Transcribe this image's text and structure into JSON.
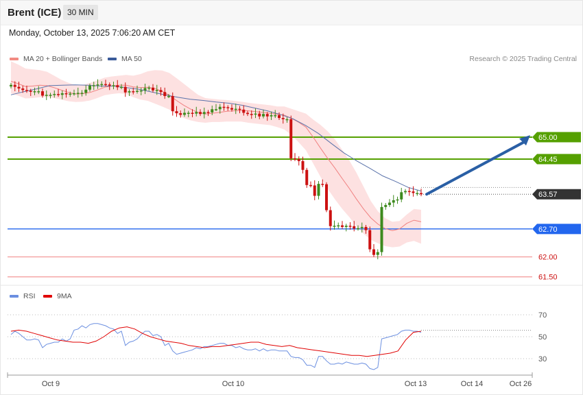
{
  "header": {
    "symbol": "Brent (ICE)",
    "timeframe": "30 MIN"
  },
  "datetime": "Monday, October 13, 2025 7:06:20 AM CET",
  "legend": {
    "ma20": {
      "label": "MA 20 + Bollinger Bands",
      "color": "#f28b82"
    },
    "ma50": {
      "label": "MA 50",
      "color": "#3a5a99"
    },
    "rsi": {
      "label": "RSI",
      "color": "#6b8fe0"
    },
    "ma9": {
      "label": "9MA",
      "color": "#e00000"
    }
  },
  "credit": "Research © 2025 Trading Central",
  "colors": {
    "bull": "#3d8a1e",
    "bear": "#cc1111",
    "band": "#fde1e1",
    "resistance": "#55a000",
    "pivot": "#2266ee",
    "support": "#f4a0a0",
    "last": "#333333",
    "arrow": "#2a5fa5"
  },
  "chart_data": [
    {
      "type": "candlestick",
      "title": "Brent (ICE) 30 MIN",
      "x_labels": [
        "Oct 9",
        "Oct 10",
        "Oct 13",
        "Oct 14",
        "Oct 26"
      ],
      "levels": [
        {
          "value": 65.0,
          "label": "65.00",
          "kind": "resistance"
        },
        {
          "value": 64.45,
          "label": "64.45",
          "kind": "resistance"
        },
        {
          "value": 63.57,
          "label": "63.57",
          "kind": "last"
        },
        {
          "value": 62.7,
          "label": "62.70",
          "kind": "pivot"
        },
        {
          "value": 62.0,
          "label": "62.00",
          "kind": "support"
        },
        {
          "value": 61.5,
          "label": "61.50",
          "kind": "support"
        }
      ],
      "series": [
        {
          "name": "Brent (ICE)",
          "close": [
            66.31,
            66.26,
            66.22,
            66.18,
            66.16,
            66.14,
            66.15,
            66.15,
            66.04,
            66.06,
            66.06,
            66.08,
            66.06,
            66.1,
            66.08,
            66.09,
            66.1,
            66.11,
            66.11,
            66.19,
            66.29,
            66.3,
            66.32,
            66.33,
            66.32,
            66.29,
            66.3,
            66.25,
            66.26,
            66.12,
            66.15,
            66.14,
            66.16,
            66.17,
            66.23,
            66.24,
            66.17,
            66.18,
            66.13,
            66.03,
            66.03,
            65.65,
            65.6,
            65.56,
            65.61,
            65.61,
            65.59,
            65.63,
            65.58,
            65.63,
            65.62,
            65.7,
            65.7,
            65.76,
            65.75,
            65.73,
            65.69,
            65.71,
            65.69,
            65.61,
            65.58,
            65.57,
            65.59,
            65.52,
            65.58,
            65.52,
            65.55,
            65.55,
            65.48,
            65.45,
            65.45,
            64.47,
            64.45,
            64.4,
            64.18,
            63.8,
            63.79,
            63.53,
            63.83,
            63.82,
            63.17,
            62.77,
            62.78,
            62.79,
            62.75,
            62.78,
            62.77,
            62.71,
            62.72,
            62.75,
            62.67,
            62.19,
            62.05,
            62.12,
            63.25,
            63.3,
            63.36,
            63.42,
            63.44,
            63.62,
            63.65,
            63.64,
            63.6,
            63.6,
            63.57
          ]
        },
        {
          "name": "MA 20",
          "values": [
            66.4,
            66.34,
            66.27,
            66.28,
            66.3,
            66.29,
            66.24,
            66.18,
            66.12,
            66.08,
            66.09,
            66.12,
            66.18,
            66.25,
            66.28,
            66.3,
            66.3,
            66.26,
            66.24,
            66.25,
            66.22,
            66.15,
            66.05,
            65.92,
            65.8,
            65.7,
            65.62,
            65.58,
            65.6,
            65.62,
            65.65,
            65.66,
            65.67,
            65.66,
            65.64,
            65.62,
            65.6,
            65.57,
            65.55,
            65.47,
            65.37,
            65.25,
            65.0,
            64.73,
            64.47,
            64.23,
            63.97,
            63.72,
            63.45,
            63.2,
            62.98,
            62.82,
            62.71,
            62.66,
            62.7,
            62.84,
            62.92,
            62.88
          ]
        },
        {
          "name": "MA 50",
          "values": [
            66.06,
            66.14,
            66.21,
            66.29,
            66.3,
            66.31,
            66.3,
            66.28,
            66.28,
            66.24,
            66.2,
            66.13,
            66.06,
            66.0,
            65.95,
            65.92,
            65.88,
            65.85,
            65.8,
            65.73,
            65.66,
            65.57,
            65.46,
            65.29,
            65.09,
            64.84,
            64.6,
            64.4,
            64.22,
            64.03,
            63.89,
            63.74,
            63.65
          ]
        },
        {
          "name": "RSI",
          "values": [
            52,
            55,
            53,
            50,
            47,
            47,
            48,
            47,
            40,
            43,
            44,
            45,
            45,
            48,
            46,
            48,
            56,
            57,
            60,
            58,
            61,
            62,
            62,
            61,
            60,
            58,
            57,
            53,
            55,
            42,
            45,
            46,
            48,
            52,
            55,
            55,
            51,
            52,
            50,
            42,
            44,
            37,
            34,
            35,
            36,
            37,
            38,
            40,
            39,
            41,
            41,
            42,
            43,
            44,
            44,
            42,
            42,
            40,
            41,
            39,
            38,
            38,
            39,
            37,
            39,
            37,
            38,
            38,
            37,
            37,
            37,
            32,
            31,
            31,
            29,
            24,
            24,
            22,
            32,
            32,
            28,
            25,
            25,
            26,
            25,
            27,
            26,
            25,
            25,
            26,
            25,
            21,
            20,
            22,
            48,
            49,
            50,
            51,
            52,
            55,
            56,
            56,
            55,
            55,
            54
          ]
        },
        {
          "name": "9MA",
          "values": [
            55,
            56,
            55,
            53,
            51,
            49,
            47,
            46,
            45,
            45,
            44,
            46,
            50,
            55,
            58,
            59,
            57,
            53,
            50,
            48,
            46,
            45,
            44,
            42,
            41,
            40,
            41,
            41,
            42,
            43,
            44,
            45,
            45,
            43,
            42,
            41,
            42,
            40,
            39,
            38,
            37,
            36,
            35,
            34,
            33,
            33,
            32,
            33,
            34,
            35,
            37,
            47,
            54,
            55
          ]
        }
      ],
      "rsi_ticks": [
        30,
        50,
        70
      ]
    }
  ]
}
